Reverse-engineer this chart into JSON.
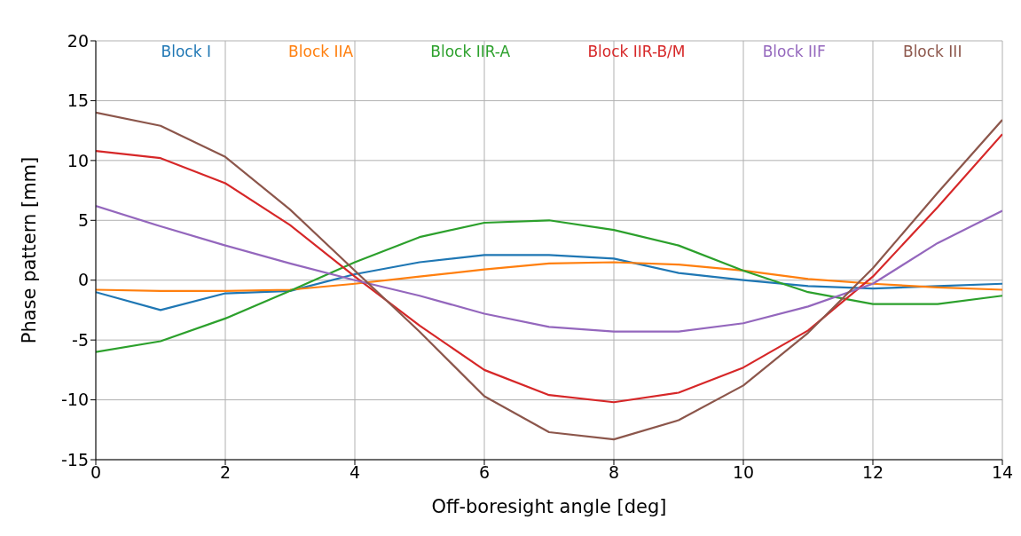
{
  "chart_data": {
    "type": "line",
    "xlabel": "Off-boresight angle [deg]",
    "ylabel": "Phase pattern [mm]",
    "x": [
      0,
      1,
      2,
      3,
      4,
      5,
      6,
      7,
      8,
      9,
      10,
      11,
      12,
      13,
      14
    ],
    "series": [
      {
        "name": "Block I",
        "color": "#1f77b4",
        "values": [
          -1,
          -2.5,
          -1.1,
          -0.9,
          0.5,
          1.5,
          2.1,
          2.1,
          1.8,
          0.6,
          0,
          -0.5,
          -0.7,
          -0.5,
          -0.3
        ]
      },
      {
        "name": "Block IIA",
        "color": "#ff7f0e",
        "values": [
          -0.8,
          -0.9,
          -0.9,
          -0.8,
          -0.3,
          0.3,
          0.9,
          1.4,
          1.5,
          1.3,
          0.8,
          0.1,
          -0.3,
          -0.6,
          -0.8
        ]
      },
      {
        "name": "Block IIR-A",
        "color": "#2ca02c",
        "values": [
          -6,
          -5.1,
          -3.2,
          -0.9,
          1.5,
          3.6,
          4.8,
          5,
          4.2,
          2.9,
          0.8,
          -1,
          -2,
          -2,
          -1.3
        ]
      },
      {
        "name": "Block IIR-B/M",
        "color": "#d62728",
        "values": [
          10.8,
          10.2,
          8.1,
          4.6,
          0.3,
          -3.8,
          -7.5,
          -9.6,
          -10.2,
          -9.4,
          -7.3,
          -4.2,
          0.3,
          6.1,
          12.2
        ]
      },
      {
        "name": "Block IIF",
        "color": "#9467bd",
        "values": [
          6.2,
          4.5,
          2.9,
          1.4,
          0,
          -1.3,
          -2.8,
          -3.9,
          -4.3,
          -4.3,
          -3.6,
          -2.2,
          -0.3,
          3.1,
          5.8
        ]
      },
      {
        "name": "Block III",
        "color": "#8c564b",
        "values": [
          14,
          12.9,
          10.3,
          5.9,
          0.8,
          -4.3,
          -9.7,
          -12.7,
          -13.3,
          -11.7,
          -8.8,
          -4.4,
          1,
          7.3,
          13.4
        ]
      }
    ],
    "xlim": [
      0,
      14
    ],
    "xticks": [
      0,
      2,
      4,
      6,
      8,
      10,
      12,
      14
    ],
    "ylim": [
      -15,
      20
    ],
    "yticks": [
      -15,
      -10,
      -5,
      0,
      5,
      10,
      15,
      20
    ],
    "grid": true,
    "legend": "top",
    "marker": "none",
    "line_style": "solid"
  }
}
